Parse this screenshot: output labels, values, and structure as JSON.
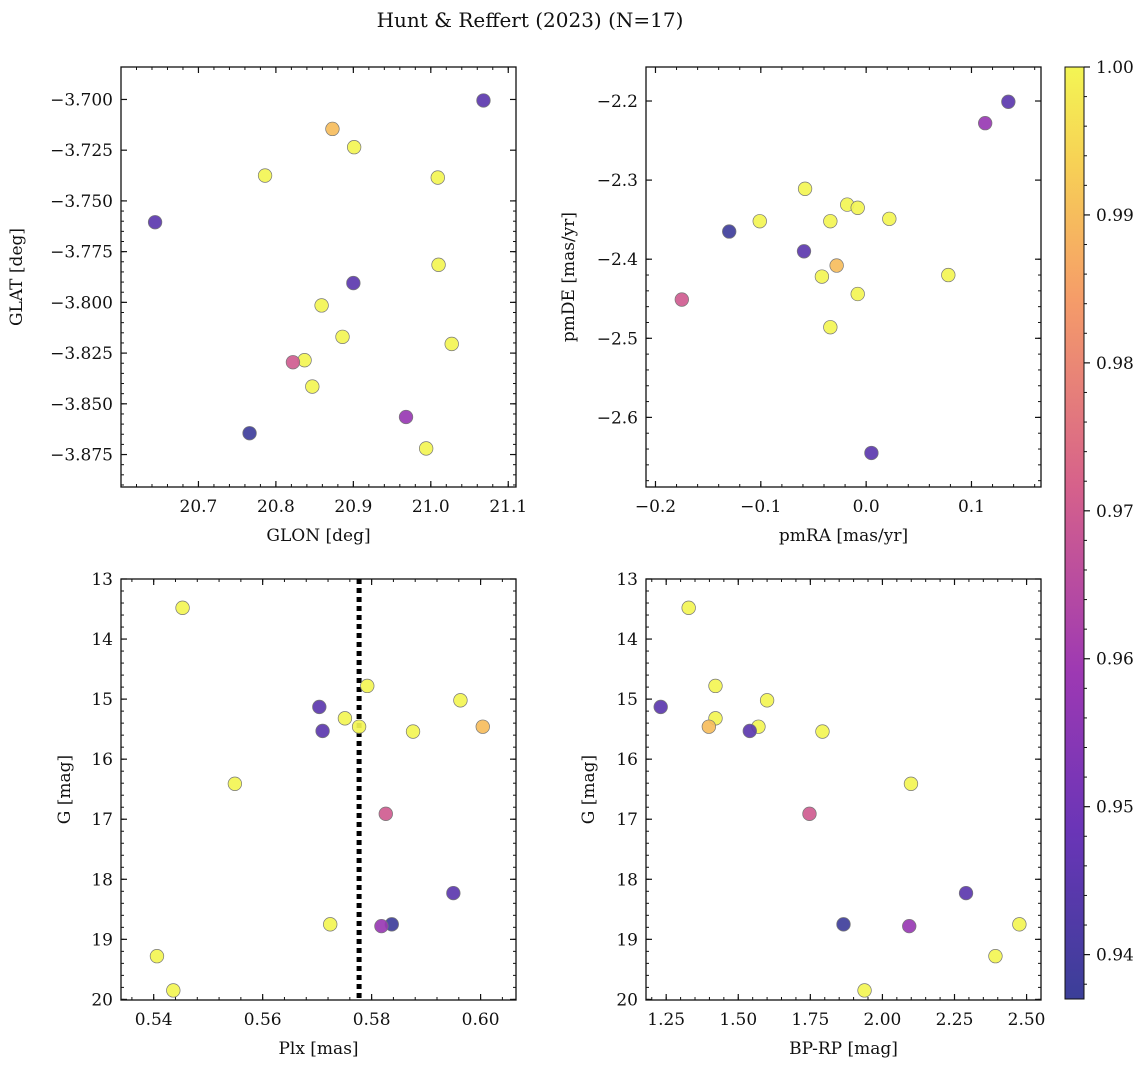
{
  "figure_title": "Hunt & Reffert (2023) (N=17)",
  "colorbar": {
    "range": [
      0.937,
      1.0
    ],
    "ticks": [
      0.94,
      0.95,
      0.96,
      0.97,
      0.98,
      0.99,
      1.0
    ],
    "tick_labels": [
      "0.94",
      "0.95",
      "0.96",
      "0.97",
      "0.98",
      "0.99",
      "1.00"
    ],
    "colormap": "plasma"
  },
  "chart_data": [
    {
      "type": "scatter",
      "xlabel": "GLON [deg]",
      "ylabel": "GLAT [deg]",
      "xlim": [
        20.6,
        21.11
      ],
      "ylim": [
        -3.891,
        -3.684
      ],
      "xticks": [
        20.7,
        20.8,
        20.9,
        21.0,
        21.1
      ],
      "xtick_labels": [
        "20.7",
        "20.8",
        "20.9",
        "21.0",
        "21.1"
      ],
      "yticks": [
        -3.7,
        -3.725,
        -3.75,
        -3.775,
        -3.8,
        -3.825,
        -3.85,
        -3.875
      ],
      "ytick_labels": [
        "−3.700",
        "−3.725",
        "−3.750",
        "−3.775",
        "−3.800",
        "−3.825",
        "−3.850",
        "−3.875"
      ],
      "points": [
        {
          "x": 21.068,
          "y": -3.7005,
          "c": 0.945
        },
        {
          "x": 20.873,
          "y": -3.7145,
          "c": 0.99
        },
        {
          "x": 20.901,
          "y": -3.7235,
          "c": 1.0
        },
        {
          "x": 20.786,
          "y": -3.7375,
          "c": 1.0
        },
        {
          "x": 21.009,
          "y": -3.7385,
          "c": 1.0
        },
        {
          "x": 20.644,
          "y": -3.7605,
          "c": 0.945
        },
        {
          "x": 21.01,
          "y": -3.7815,
          "c": 1.0
        },
        {
          "x": 20.9,
          "y": -3.7905,
          "c": 0.945
        },
        {
          "x": 20.859,
          "y": -3.8015,
          "c": 1.0
        },
        {
          "x": 20.886,
          "y": -3.817,
          "c": 1.0
        },
        {
          "x": 21.027,
          "y": -3.8205,
          "c": 1.0
        },
        {
          "x": 20.837,
          "y": -3.8285,
          "c": 1.0
        },
        {
          "x": 20.822,
          "y": -3.8295,
          "c": 0.97
        },
        {
          "x": 20.847,
          "y": -3.8415,
          "c": 1.0
        },
        {
          "x": 20.968,
          "y": -3.8565,
          "c": 0.958
        },
        {
          "x": 20.766,
          "y": -3.8645,
          "c": 0.938
        },
        {
          "x": 20.994,
          "y": -3.872,
          "c": 1.0
        }
      ]
    },
    {
      "type": "scatter",
      "xlabel": "pmRA [mas/yr]",
      "ylabel": "pmDE [mas/yr]",
      "xlim": [
        -0.209,
        0.166
      ],
      "ylim": [
        -2.688,
        -2.157
      ],
      "xticks": [
        -0.2,
        -0.1,
        0.0,
        0.1
      ],
      "xtick_labels": [
        "−0.2",
        "−0.1",
        "0.0",
        "0.1"
      ],
      "yticks": [
        -2.2,
        -2.3,
        -2.4,
        -2.5,
        -2.6
      ],
      "ytick_labels": [
        "−2.2",
        "−2.3",
        "−2.4",
        "−2.5",
        "−2.6"
      ],
      "points": [
        {
          "x": 0.135,
          "y": -2.201,
          "c": 0.945
        },
        {
          "x": 0.113,
          "y": -2.228,
          "c": 0.958
        },
        {
          "x": -0.058,
          "y": -2.311,
          "c": 1.0
        },
        {
          "x": -0.018,
          "y": -2.331,
          "c": 1.0
        },
        {
          "x": -0.008,
          "y": -2.335,
          "c": 1.0
        },
        {
          "x": 0.022,
          "y": -2.349,
          "c": 1.0
        },
        {
          "x": -0.101,
          "y": -2.352,
          "c": 1.0
        },
        {
          "x": -0.034,
          "y": -2.352,
          "c": 1.0
        },
        {
          "x": -0.13,
          "y": -2.365,
          "c": 0.938
        },
        {
          "x": -0.059,
          "y": -2.39,
          "c": 0.945
        },
        {
          "x": -0.028,
          "y": -2.408,
          "c": 0.99
        },
        {
          "x": 0.078,
          "y": -2.42,
          "c": 1.0
        },
        {
          "x": -0.042,
          "y": -2.422,
          "c": 1.0
        },
        {
          "x": -0.008,
          "y": -2.444,
          "c": 1.0
        },
        {
          "x": -0.175,
          "y": -2.451,
          "c": 0.97
        },
        {
          "x": -0.034,
          "y": -2.486,
          "c": 1.0
        },
        {
          "x": 0.005,
          "y": -2.645,
          "c": 0.945
        }
      ]
    },
    {
      "type": "scatter",
      "xlabel": "Plx [mas]",
      "ylabel": "G [mag]",
      "xlim": [
        0.534,
        0.6065
      ],
      "ylim": [
        20.01,
        13.0
      ],
      "y_inverted": true,
      "xticks": [
        0.54,
        0.56,
        0.58,
        0.6
      ],
      "xtick_labels": [
        "0.54",
        "0.56",
        "0.58",
        "0.60"
      ],
      "yticks": [
        13,
        14,
        15,
        16,
        17,
        18,
        19,
        20
      ],
      "ytick_labels": [
        "13",
        "14",
        "15",
        "16",
        "17",
        "18",
        "19",
        "20"
      ],
      "vline": {
        "x": 0.5777,
        "style": "dotted"
      },
      "points": [
        {
          "x": 0.5453,
          "y": 13.48,
          "c": 1.0
        },
        {
          "x": 0.5792,
          "y": 14.78,
          "c": 1.0
        },
        {
          "x": 0.5963,
          "y": 15.02,
          "c": 1.0
        },
        {
          "x": 0.5704,
          "y": 15.13,
          "c": 0.945
        },
        {
          "x": 0.5751,
          "y": 15.32,
          "c": 1.0
        },
        {
          "x": 0.5777,
          "y": 15.46,
          "c": 1.0
        },
        {
          "x": 0.6004,
          "y": 15.46,
          "c": 0.99
        },
        {
          "x": 0.571,
          "y": 15.53,
          "c": 0.945
        },
        {
          "x": 0.5876,
          "y": 15.54,
          "c": 1.0
        },
        {
          "x": 0.5549,
          "y": 16.41,
          "c": 1.0
        },
        {
          "x": 0.5826,
          "y": 16.91,
          "c": 0.97
        },
        {
          "x": 0.595,
          "y": 18.23,
          "c": 0.945
        },
        {
          "x": 0.5724,
          "y": 18.75,
          "c": 1.0
        },
        {
          "x": 0.5837,
          "y": 18.75,
          "c": 0.938
        },
        {
          "x": 0.5818,
          "y": 18.78,
          "c": 0.958
        },
        {
          "x": 0.5406,
          "y": 19.28,
          "c": 1.0
        },
        {
          "x": 0.5436,
          "y": 19.85,
          "c": 1.0
        }
      ]
    },
    {
      "type": "scatter",
      "xlabel": "BP-RP [mag]",
      "ylabel": "G [mag]",
      "xlim": [
        1.18,
        2.55
      ],
      "ylim": [
        20.01,
        13.0
      ],
      "y_inverted": true,
      "xticks": [
        1.25,
        1.5,
        1.75,
        2.0,
        2.25,
        2.5
      ],
      "xtick_labels": [
        "1.25",
        "1.50",
        "1.75",
        "2.00",
        "2.25",
        "2.50"
      ],
      "yticks": [
        13,
        14,
        15,
        16,
        17,
        18,
        19,
        20
      ],
      "ytick_labels": [
        "13",
        "14",
        "15",
        "16",
        "17",
        "18",
        "19",
        "20"
      ],
      "points": [
        {
          "x": 1.328,
          "y": 13.48,
          "c": 1.0
        },
        {
          "x": 1.421,
          "y": 14.78,
          "c": 1.0
        },
        {
          "x": 1.6,
          "y": 15.02,
          "c": 1.0
        },
        {
          "x": 1.231,
          "y": 15.13,
          "c": 0.945
        },
        {
          "x": 1.421,
          "y": 15.32,
          "c": 1.0
        },
        {
          "x": 1.398,
          "y": 15.46,
          "c": 0.99
        },
        {
          "x": 1.57,
          "y": 15.46,
          "c": 1.0
        },
        {
          "x": 1.54,
          "y": 15.53,
          "c": 0.945
        },
        {
          "x": 1.792,
          "y": 15.54,
          "c": 1.0
        },
        {
          "x": 2.099,
          "y": 16.41,
          "c": 1.0
        },
        {
          "x": 1.747,
          "y": 16.91,
          "c": 0.97
        },
        {
          "x": 2.29,
          "y": 18.23,
          "c": 0.945
        },
        {
          "x": 1.865,
          "y": 18.75,
          "c": 0.938
        },
        {
          "x": 2.475,
          "y": 18.75,
          "c": 1.0
        },
        {
          "x": 2.093,
          "y": 18.78,
          "c": 0.958
        },
        {
          "x": 2.392,
          "y": 19.28,
          "c": 1.0
        },
        {
          "x": 1.938,
          "y": 19.85,
          "c": 1.0
        }
      ]
    }
  ]
}
